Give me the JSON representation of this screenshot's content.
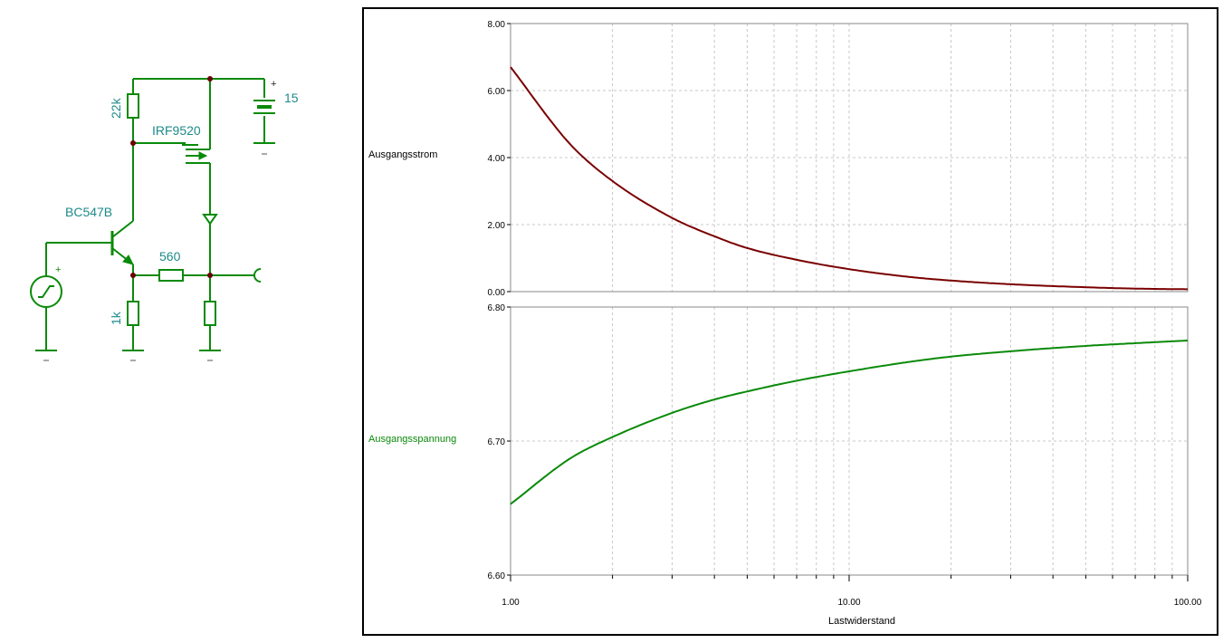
{
  "schematic": {
    "labels": {
      "r22k": "22k",
      "mosfet": "IRF9520",
      "battery_plus": "+",
      "battery_value": "15",
      "transistor": "BC547B",
      "r560": "560",
      "source_plus": "+",
      "r1k": "1k"
    },
    "wire_color": "#0a8a0a",
    "label_color": "#1f8a8a"
  },
  "chart_data": [
    {
      "type": "line",
      "xlabel": "Lastwiderstand",
      "ylabel": "Ausgangsstrom",
      "xscale": "log",
      "xlim": [
        1,
        100
      ],
      "ylim": [
        0,
        8
      ],
      "x_ticks": [
        "1.00",
        "10.00",
        "100.00"
      ],
      "y_ticks": [
        "0.00",
        "2.00",
        "4.00",
        "6.00",
        "8.00"
      ],
      "grid": true,
      "color": "#7a0000",
      "x": [
        1,
        1.5,
        2,
        3,
        4,
        5,
        7,
        10,
        15,
        20,
        30,
        50,
        70,
        100
      ],
      "y": [
        6.7,
        4.4,
        3.3,
        2.2,
        1.65,
        1.3,
        0.95,
        0.67,
        0.44,
        0.33,
        0.22,
        0.13,
        0.09,
        0.07
      ]
    },
    {
      "type": "line",
      "xlabel": "Lastwiderstand",
      "ylabel": "Ausgangsspannung",
      "xscale": "log",
      "xlim": [
        1,
        100
      ],
      "ylim": [
        6.6,
        6.8
      ],
      "x_ticks": [
        "1.00",
        "10.00",
        "100.00"
      ],
      "y_ticks": [
        "6.60",
        "6.70",
        "6.80"
      ],
      "grid": true,
      "color": "#0a8a0a",
      "x": [
        1,
        1.5,
        2,
        3,
        4,
        5,
        7,
        10,
        15,
        20,
        30,
        50,
        70,
        100
      ],
      "y": [
        6.653,
        6.687,
        6.703,
        6.721,
        6.731,
        6.737,
        6.745,
        6.752,
        6.759,
        6.763,
        6.767,
        6.771,
        6.773,
        6.775
      ]
    }
  ]
}
